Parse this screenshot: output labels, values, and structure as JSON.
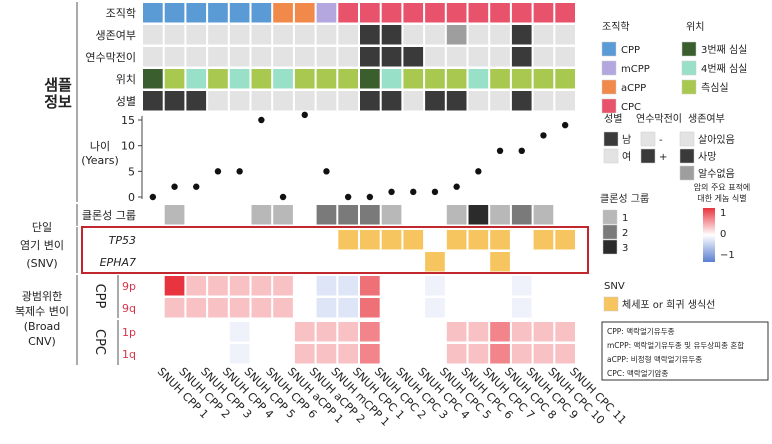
{
  "chart_data": {
    "type": "heatmap",
    "samples": [
      "SNUH CPP 1",
      "SNUH CPP 2",
      "SNUH CPP 3",
      "SNUH CPP 4",
      "SNUH CPP 5",
      "SNUH CPP 6",
      "SNUH aCPP 1",
      "SNUH aCPP 2",
      "SNUH mCPP 1",
      "SNUH CPC 1",
      "SNUH CPC 2",
      "SNUH CPC 3",
      "SNUH CPC 4",
      "SNUH CPC 5",
      "SNUH CPC 6",
      "SNUH CPC 7",
      "SNUH CPC 8",
      "SNUH CPC 9",
      "SNUH CPC 10",
      "SNUH CPC 11"
    ],
    "sections": {
      "sample_info": "샘플\n정보",
      "snv": "단일\n염기 변이\n(SNV)",
      "cnv": "광범위한\n복제수 변이\n(Broad\nCNV)",
      "cnv_group_cpp": "CPP",
      "cnv_group_cpc": "CPC"
    },
    "row_labels": {
      "histology": "조직학",
      "survival": "생존여부",
      "leptomeningeal": "연수막전이",
      "location": "위치",
      "sex": "성별",
      "age": "나이",
      "age_unit": "(Years)",
      "clonal": "클론성 그룹",
      "tp53": "TP53",
      "epha7": "EPHA7",
      "cnv_9p": "9p",
      "cnv_9q": "9q",
      "cnv_1p": "1p",
      "cnv_1q": "1q"
    },
    "histology": [
      "CPP",
      "CPP",
      "CPP",
      "CPP",
      "CPP",
      "CPP",
      "aCPP",
      "aCPP",
      "mCPP",
      "CPC",
      "CPC",
      "CPC",
      "CPC",
      "CPC",
      "CPC",
      "CPC",
      "CPC",
      "CPC",
      "CPC",
      "CPC"
    ],
    "survival": [
      "-",
      "-",
      "-",
      "-",
      "-",
      "-",
      "-",
      "-",
      "-",
      "-",
      "사망",
      "사망",
      "-",
      "-",
      "알수없음",
      "-",
      "-",
      "사망",
      "-",
      "-"
    ],
    "leptomeningeal": [
      "-",
      "-",
      "-",
      "-",
      "-",
      "-",
      "-",
      "-",
      "-",
      "-",
      "+",
      "+",
      "+",
      "-",
      "-",
      "-",
      "-",
      "+",
      "-",
      "-"
    ],
    "location": [
      "3번째 심실",
      "측심실",
      "4번째 심실",
      "측심실",
      "4번째 심실",
      "측심실",
      "4번째 심실",
      "측심실",
      "측심실",
      "측심실",
      "3번째 심실",
      "4번째 심실",
      "측심실",
      "측심실",
      "측심실",
      "4번째 심실",
      "측심실",
      "측심실",
      "측심실",
      "측심실"
    ],
    "sex": [
      "남",
      "남",
      "남",
      "여",
      "여",
      "여",
      "여",
      "여",
      "여",
      "여",
      "남",
      "남",
      "여",
      "남",
      "남",
      "여",
      "여",
      "남",
      "여",
      "여"
    ],
    "age_axis": {
      "min": 0,
      "max": 15,
      "ticks": [
        0,
        5,
        10,
        15
      ]
    },
    "age": [
      0,
      2,
      2,
      5,
      5,
      15,
      0,
      16,
      5,
      0,
      0,
      1,
      1,
      1,
      2,
      5,
      9,
      9,
      12,
      14
    ],
    "clonal": [
      null,
      1,
      null,
      null,
      null,
      1,
      1,
      null,
      2,
      2,
      2,
      1,
      null,
      null,
      1,
      3,
      1,
      2,
      1,
      null
    ],
    "tp53": [
      false,
      false,
      false,
      false,
      false,
      false,
      false,
      false,
      false,
      true,
      true,
      true,
      true,
      false,
      true,
      true,
      true,
      false,
      true,
      true
    ],
    "epha7": [
      false,
      false,
      false,
      false,
      false,
      false,
      false,
      false,
      false,
      false,
      false,
      false,
      false,
      true,
      false,
      false,
      true,
      false,
      false,
      false
    ],
    "cnv": {
      "9p": [
        0,
        1.1,
        0.3,
        0.3,
        0.3,
        0.3,
        0.3,
        0,
        -0.2,
        -0.2,
        0.7,
        0,
        0,
        -0.1,
        0,
        0,
        0,
        -0.1,
        0,
        0
      ],
      "9q": [
        0,
        0.3,
        0.3,
        0.3,
        0.3,
        0.3,
        0.3,
        0,
        -0.2,
        -0.2,
        0.7,
        0,
        0,
        -0.1,
        0,
        0,
        0,
        -0.1,
        0,
        0
      ],
      "1p": [
        0,
        0,
        0,
        0,
        -0.1,
        0,
        0,
        0.3,
        0.3,
        0.3,
        0.6,
        0,
        0,
        0,
        0.3,
        0.3,
        0.6,
        0.3,
        0.3,
        0.3
      ],
      "1q": [
        0,
        0,
        0,
        0,
        -0.1,
        0,
        0,
        0.3,
        0.3,
        0.3,
        0.6,
        0,
        0,
        0,
        0.3,
        0.3,
        0.6,
        0.3,
        0.3,
        0.3
      ]
    },
    "colors": {
      "histology": {
        "CPP": "#5b9bd5",
        "mCPP": "#b4a7e0",
        "aCPP": "#f0894a",
        "CPC": "#e8536b"
      },
      "location": {
        "3번째 심실": "#3b5e2e",
        "4번째 심실": "#99e0c9",
        "측심실": "#a9c84f"
      },
      "binary_on": "#3a3a3a",
      "binary_off": "#e3e3e3",
      "unknown": "#9e9e9e",
      "snv": "#f7c55f",
      "clonal": {
        "1": "#b8b8b8",
        "2": "#7a7a7a",
        "3": "#2b2b2b"
      },
      "cnv_pos": "#e8343e",
      "cnv_neg": "#5b7fd1"
    },
    "legends": {
      "histology": {
        "title": "조직학",
        "items": [
          "CPP",
          "mCPP",
          "aCPP",
          "CPC"
        ]
      },
      "location": {
        "title": "위치",
        "items": [
          "3번째 심실",
          "4번째 심실",
          "측심실"
        ]
      },
      "sex": {
        "title": "성별",
        "items": [
          "남",
          "여"
        ]
      },
      "leptomeningeal": {
        "title": "연수막전이",
        "items": [
          "-",
          "+"
        ]
      },
      "survival": {
        "title": "생존여부",
        "items": [
          "살아있음",
          "사망",
          "알수없음"
        ]
      },
      "clonal": {
        "title": "클론성 그룹",
        "items": [
          "1",
          "2",
          "3"
        ]
      },
      "cnv_scale": {
        "title": "암의 주요 표적에\n대한 게놈 식별",
        "ticks": [
          "1",
          "0",
          "−1"
        ],
        "range": [
          -1,
          1
        ]
      },
      "snv": {
        "title": "SNV",
        "items": [
          "체세포 or 희귀 생식선"
        ]
      }
    },
    "abbreviations": [
      "CPP: 맥락얼기유두종",
      "mCPP: 맥락얼기유두종 및 유두상피종 혼합",
      "aCPP: 비정형 맥락얼기유두종",
      "CPC: 맥락얼기암종"
    ]
  }
}
